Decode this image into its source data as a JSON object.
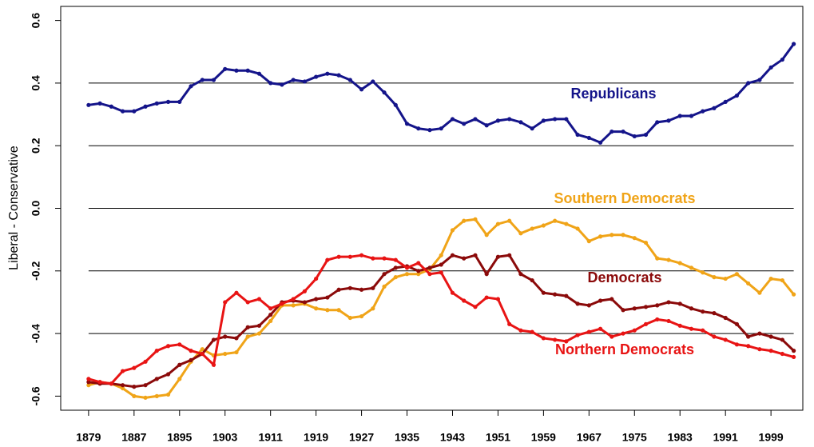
{
  "chart_data": {
    "type": "line",
    "y_label": "Liberal - Conservative",
    "x": [
      1879,
      1881,
      1883,
      1885,
      1887,
      1889,
      1891,
      1893,
      1895,
      1897,
      1899,
      1901,
      1903,
      1905,
      1907,
      1909,
      1911,
      1913,
      1915,
      1917,
      1919,
      1921,
      1923,
      1925,
      1927,
      1929,
      1931,
      1933,
      1935,
      1937,
      1939,
      1941,
      1943,
      1945,
      1947,
      1949,
      1951,
      1953,
      1955,
      1957,
      1959,
      1961,
      1963,
      1965,
      1967,
      1969,
      1971,
      1973,
      1975,
      1977,
      1979,
      1981,
      1983,
      1985,
      1987,
      1989,
      1991,
      1993,
      1995,
      1997,
      1999,
      2001,
      2003
    ],
    "series": [
      {
        "name": "Republicans",
        "color": "#14148a",
        "values": [
          0.33,
          0.335,
          0.325,
          0.31,
          0.31,
          0.325,
          0.335,
          0.34,
          0.34,
          0.39,
          0.41,
          0.41,
          0.445,
          0.44,
          0.44,
          0.43,
          0.4,
          0.395,
          0.41,
          0.405,
          0.42,
          0.43,
          0.425,
          0.41,
          0.38,
          0.405,
          0.37,
          0.33,
          0.27,
          0.255,
          0.25,
          0.255,
          0.285,
          0.27,
          0.285,
          0.265,
          0.28,
          0.285,
          0.275,
          0.255,
          0.28,
          0.285,
          0.285,
          0.235,
          0.225,
          0.21,
          0.245,
          0.245,
          0.23,
          0.235,
          0.275,
          0.28,
          0.295,
          0.295,
          0.31,
          0.32,
          0.34,
          0.36,
          0.4,
          0.41,
          0.45,
          0.475,
          0.525
        ]
      },
      {
        "name": "Southern Democrats",
        "color": "#f0a418",
        "values": [
          -0.565,
          -0.555,
          -0.56,
          -0.575,
          -0.6,
          -0.605,
          -0.6,
          -0.595,
          -0.545,
          -0.49,
          -0.45,
          -0.47,
          -0.465,
          -0.46,
          -0.41,
          -0.4,
          -0.36,
          -0.31,
          -0.31,
          -0.305,
          -0.32,
          -0.325,
          -0.325,
          -0.35,
          -0.345,
          -0.32,
          -0.25,
          -0.22,
          -0.21,
          -0.21,
          -0.195,
          -0.15,
          -0.07,
          -0.04,
          -0.035,
          -0.085,
          -0.05,
          -0.04,
          -0.08,
          -0.065,
          -0.055,
          -0.04,
          -0.05,
          -0.065,
          -0.105,
          -0.09,
          -0.085,
          -0.085,
          -0.095,
          -0.11,
          -0.16,
          -0.165,
          -0.175,
          -0.19,
          -0.205,
          -0.22,
          -0.225,
          -0.21,
          -0.24,
          -0.27,
          -0.225,
          -0.23,
          -0.275
        ]
      },
      {
        "name": "Democrats",
        "color": "#8b0a0a",
        "values": [
          -0.555,
          -0.56,
          -0.56,
          -0.565,
          -0.57,
          -0.565,
          -0.545,
          -0.53,
          -0.5,
          -0.485,
          -0.465,
          -0.42,
          -0.41,
          -0.415,
          -0.38,
          -0.375,
          -0.34,
          -0.3,
          -0.295,
          -0.3,
          -0.29,
          -0.285,
          -0.26,
          -0.255,
          -0.26,
          -0.255,
          -0.21,
          -0.19,
          -0.185,
          -0.2,
          -0.19,
          -0.18,
          -0.15,
          -0.16,
          -0.15,
          -0.21,
          -0.155,
          -0.15,
          -0.21,
          -0.23,
          -0.27,
          -0.275,
          -0.28,
          -0.305,
          -0.31,
          -0.295,
          -0.29,
          -0.325,
          -0.32,
          -0.315,
          -0.31,
          -0.3,
          -0.305,
          -0.32,
          -0.33,
          -0.335,
          -0.35,
          -0.37,
          -0.41,
          -0.4,
          -0.41,
          -0.42,
          -0.455
        ]
      },
      {
        "name": "Northern Democrats",
        "color": "#e81414",
        "values": [
          -0.545,
          -0.555,
          -0.56,
          -0.52,
          -0.51,
          -0.49,
          -0.455,
          -0.44,
          -0.435,
          -0.455,
          -0.465,
          -0.5,
          -0.3,
          -0.27,
          -0.3,
          -0.29,
          -0.32,
          -0.305,
          -0.29,
          -0.265,
          -0.225,
          -0.165,
          -0.155,
          -0.155,
          -0.15,
          -0.16,
          -0.16,
          -0.165,
          -0.19,
          -0.175,
          -0.21,
          -0.205,
          -0.27,
          -0.295,
          -0.315,
          -0.285,
          -0.29,
          -0.37,
          -0.39,
          -0.395,
          -0.415,
          -0.42,
          -0.425,
          -0.405,
          -0.395,
          -0.385,
          -0.41,
          -0.4,
          -0.39,
          -0.37,
          -0.355,
          -0.36,
          -0.375,
          -0.385,
          -0.39,
          -0.41,
          -0.42,
          -0.435,
          -0.44,
          -0.45,
          -0.455,
          -0.465,
          -0.475
        ]
      }
    ],
    "xlim": [
      1874.1,
      2004.6
    ],
    "xticks": [
      1879,
      1887,
      1895,
      1903,
      1911,
      1919,
      1927,
      1935,
      1943,
      1951,
      1959,
      1967,
      1975,
      1983,
      1991,
      1999
    ],
    "ylim": [
      -0.645,
      0.645
    ],
    "yticks": [
      0.6,
      0.4,
      0.2,
      {
        "value": 0,
        "label": "0.0"
      },
      -0.2,
      -0.4,
      -0.6
    ],
    "grid": true
  }
}
